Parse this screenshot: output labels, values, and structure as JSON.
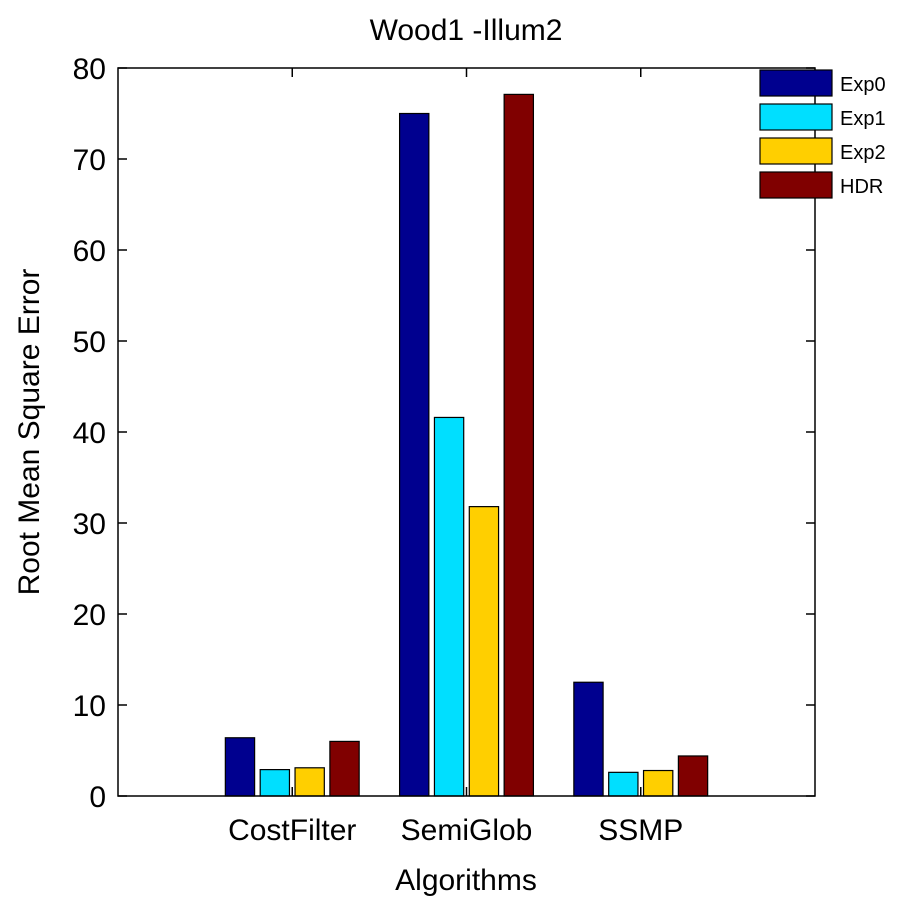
{
  "chart_data": {
    "type": "bar",
    "title": "Wood1 -Illum2",
    "xlabel": "Algorithms",
    "ylabel": "Root Mean Square Error",
    "categories": [
      "CostFilter",
      "SemiGlob",
      "SSMP"
    ],
    "ylim": [
      0,
      80
    ],
    "yticks": [
      0,
      10,
      20,
      30,
      40,
      50,
      60,
      70,
      80
    ],
    "grid": false,
    "legend_position": "top-right",
    "series": [
      {
        "name": "Exp0",
        "color": "#00008F",
        "values": [
          6.4,
          75.0,
          12.5
        ]
      },
      {
        "name": "Exp1",
        "color": "#00DFFF",
        "values": [
          2.9,
          41.6,
          2.6
        ]
      },
      {
        "name": "Exp2",
        "color": "#FFCF00",
        "values": [
          3.1,
          31.8,
          2.8
        ]
      },
      {
        "name": "HDR",
        "color": "#800000",
        "values": [
          6.0,
          77.1,
          4.4
        ]
      }
    ]
  }
}
